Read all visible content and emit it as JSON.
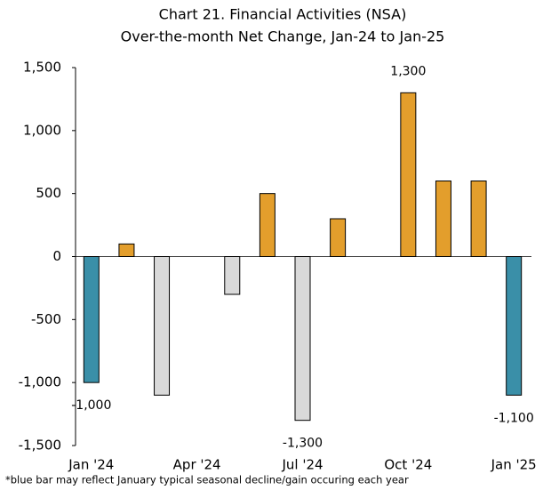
{
  "chart_data": {
    "type": "bar",
    "title": "Chart 21. Financial Activities (NSA)",
    "subtitle": "Over-the-month Net Change, Jan-24 to Jan-25",
    "footnote": "*blue bar may reflect January typical seasonal decline/gain occuring each year",
    "categories": [
      "Jan '24",
      null,
      null,
      "Apr '24",
      null,
      null,
      "Jul '24",
      null,
      null,
      "Oct '24",
      null,
      null,
      "Jan '25"
    ],
    "values": [
      -1000,
      100,
      -1100,
      0,
      -300,
      500,
      -1300,
      300,
      0,
      1300,
      600,
      600,
      -1100
    ],
    "value_labels": [
      "-1,000",
      null,
      null,
      null,
      null,
      null,
      "-1,300",
      null,
      null,
      "1,300",
      null,
      null,
      "-1,100"
    ],
    "colors": [
      "#3a8fa8",
      "#e39e2c",
      "#d9d9d9",
      "#e39e2c",
      "#d9d9d9",
      "#e39e2c",
      "#d9d9d9",
      "#e39e2c",
      "#e39e2c",
      "#e39e2c",
      "#e39e2c",
      "#e39e2c",
      "#3a8fa8"
    ],
    "ylim": [
      -1500,
      1500
    ],
    "yticks": [
      {
        "value": -1500,
        "label": "-1,500"
      },
      {
        "value": -1000,
        "label": "-1,000"
      },
      -500,
      0,
      500,
      {
        "value": 1000,
        "label": "1,000"
      },
      {
        "value": 1500,
        "label": "1,500"
      }
    ],
    "grid": false
  }
}
